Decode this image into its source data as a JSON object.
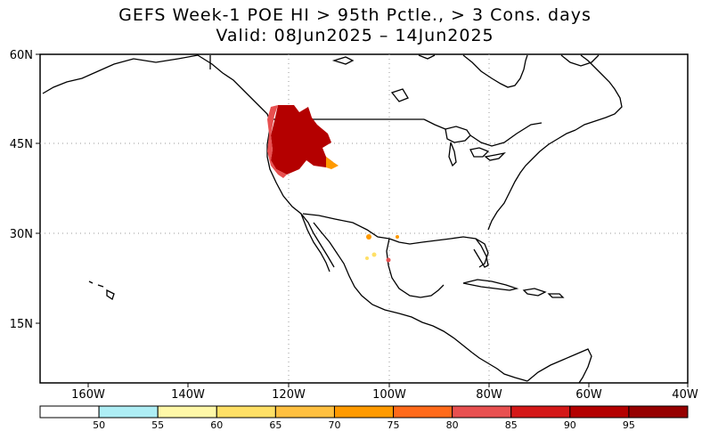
{
  "title": {
    "line1": "GEFS Week-1 POE HI > 95th Pctle., > 3 Cons. days",
    "line2": "Valid: 08Jun2025 – 14Jun2025"
  },
  "map": {
    "lat_labels": [
      "60N",
      "45N",
      "30N",
      "15N"
    ],
    "lon_labels": [
      "160W",
      "140W",
      "120W",
      "100W",
      "80W",
      "60W",
      "40W"
    ],
    "gridlines": "dotted",
    "projection": "cylindrical lat-lon"
  },
  "colorbar": {
    "tick_labels": [
      "50",
      "55",
      "60",
      "65",
      "70",
      "75",
      "80",
      "85",
      "90",
      "95"
    ],
    "colors": [
      "#ffffff",
      "#aeeef5",
      "#fff8a8",
      "#ffe066",
      "#ffc040",
      "#ff9a00",
      "#ff6a1a",
      "#e85050",
      "#d41818",
      "#b40000",
      "#960000"
    ]
  },
  "highlight_colors": {
    "high": "#b40000",
    "very_high": "#960000",
    "mid": "#e85050",
    "low": "#ff9a00",
    "lowest": "#ffe066"
  }
}
